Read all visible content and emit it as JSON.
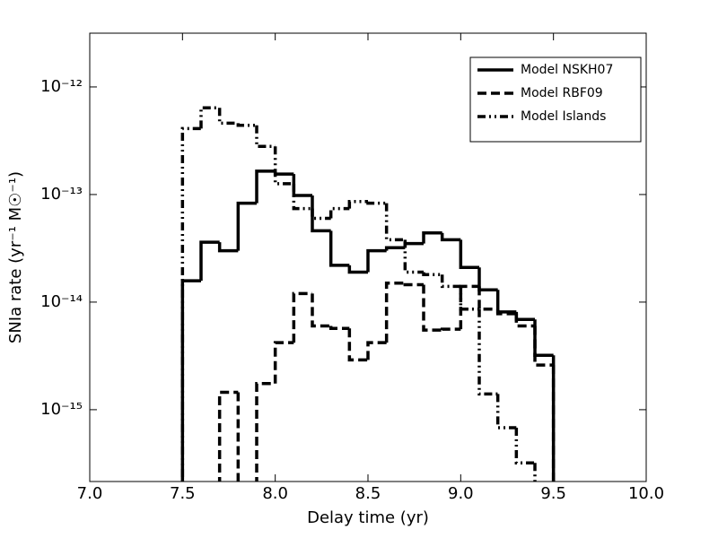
{
  "chart_data": {
    "type": "step-histogram",
    "xlabel": "Delay time (yr)",
    "ylabel": "SNIa rate (yr⁻¹ M☉⁻¹)",
    "bins": [
      7.5,
      7.6,
      7.7,
      7.8,
      7.9,
      8.0,
      8.1,
      8.2,
      8.3,
      8.4,
      8.5,
      8.6,
      8.7,
      8.8,
      8.9,
      9.0,
      9.1,
      9.2,
      9.3,
      9.4,
      9.5
    ],
    "series": [
      {
        "name": "Model NSKH07",
        "color": "#000000",
        "linestyle": "solid",
        "values": [
          1.58e-14,
          3.6e-14,
          3e-14,
          8.3e-14,
          1.65e-13,
          1.55e-13,
          9.8e-14,
          4.6e-14,
          2.2e-14,
          1.9e-14,
          3e-14,
          3.2e-14,
          3.5e-14,
          4.4e-14,
          3.8e-14,
          2.1e-14,
          1.3e-14,
          8.1e-15,
          6.9e-15,
          3.2e-15
        ]
      },
      {
        "name": "Model RBF09",
        "color": "#000000",
        "linestyle": "dashed",
        "values": [
          0,
          0,
          1.45e-15,
          0,
          1.75e-15,
          4.2e-15,
          1.2e-14,
          6e-15,
          5.7e-15,
          2.9e-15,
          4.2e-15,
          1.5e-14,
          1.45e-14,
          5.5e-15,
          5.6e-15,
          1.4e-14,
          8.6e-15,
          7.8e-15,
          6e-15,
          2.6e-15
        ]
      },
      {
        "name": "Model Islands",
        "color": "#000000",
        "linestyle": "dashdotdot",
        "values": [
          4.1e-13,
          6.4e-13,
          4.6e-13,
          4.4e-13,
          2.8e-13,
          1.26e-13,
          7.4e-14,
          6e-14,
          7.4e-14,
          8.6e-14,
          8.3e-14,
          3.8e-14,
          1.9e-14,
          1.8e-14,
          1.4e-14,
          8.6e-15,
          1.4e-15,
          6.8e-16,
          3.2e-16,
          0
        ]
      }
    ],
    "xlim": [
      7.0,
      10.0
    ],
    "xticks": [
      {
        "value": 7,
        "label": "7.0"
      },
      7.5,
      {
        "value": 8,
        "label": "8.0"
      },
      8.5,
      {
        "value": 9,
        "label": "9.0"
      },
      9.5,
      {
        "value": 10,
        "label": "10.0"
      }
    ],
    "ylim": [
      2.15e-16,
      3.16e-12
    ],
    "yscale": "log",
    "yticks": [
      {
        "value": 1e-15,
        "label": "10⁻¹⁵"
      },
      {
        "value": 1e-14,
        "label": "10⁻¹⁴"
      },
      {
        "value": 1e-13,
        "label": "10⁻¹³"
      },
      {
        "value": 1e-12,
        "label": "10⁻¹²"
      }
    ],
    "grid": false,
    "legend": "upper right"
  }
}
